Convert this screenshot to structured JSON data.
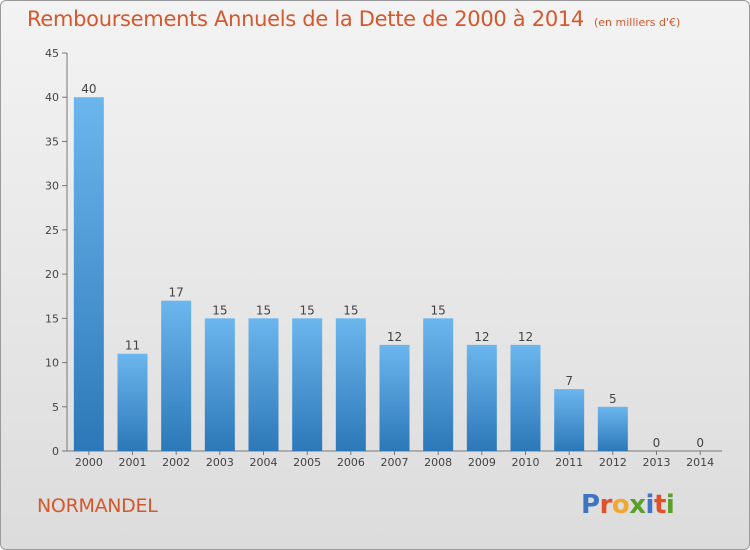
{
  "title": "Remboursements Annuels de la Dette de 2000 à 2014",
  "unit_note": "(en milliers d'€)",
  "location": "NORMANDEL",
  "logo_text": "Proxiti",
  "colors": {
    "title": "#d4582c",
    "bar_light": "#6cb6ee",
    "bar_dark": "#2c78b8",
    "logo_letters": [
      "#3f74c4",
      "#e0502a",
      "#f0a830",
      "#5aa02c",
      "#3f74c4",
      "#e0502a",
      "#5aa02c"
    ]
  },
  "chart_data": {
    "type": "bar",
    "title": "Remboursements Annuels de la Dette de 2000 à 2014",
    "subtitle": "(en milliers d'€)",
    "xlabel": "",
    "ylabel": "",
    "ylim": [
      0,
      45
    ],
    "yticks": [
      0,
      5,
      10,
      15,
      20,
      25,
      30,
      35,
      40,
      45
    ],
    "grid": false,
    "categories": [
      "2000",
      "2001",
      "2002",
      "2003",
      "2004",
      "2005",
      "2006",
      "2007",
      "2008",
      "2009",
      "2010",
      "2011",
      "2012",
      "2013",
      "2014"
    ],
    "values": [
      40,
      11,
      17,
      15,
      15,
      15,
      15,
      12,
      15,
      12,
      12,
      7,
      5,
      0,
      0
    ],
    "data_labels": [
      "40",
      "11",
      "17",
      "15",
      "15",
      "15",
      "15",
      "12",
      "15",
      "12",
      "12",
      "7",
      "5",
      "0",
      "0"
    ]
  }
}
